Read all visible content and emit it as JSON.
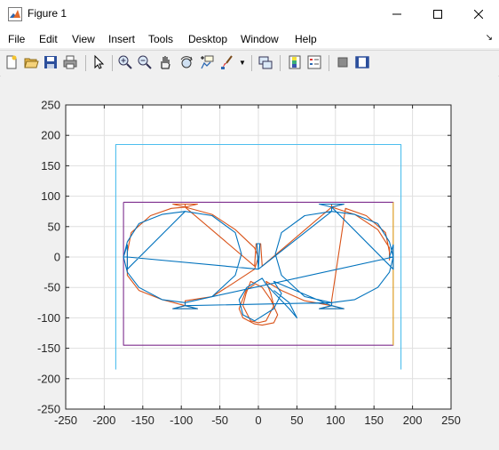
{
  "window": {
    "title": "Figure 1"
  },
  "menu": [
    "File",
    "Edit",
    "View",
    "Insert",
    "Tools",
    "Desktop",
    "Window",
    "Help"
  ],
  "toolbar": [
    "new-figure-icon",
    "open-file-icon",
    "save-icon",
    "print-icon",
    "pointer-icon",
    "zoom-in-icon",
    "zoom-out-icon",
    "pan-icon",
    "rotate-3d-icon",
    "data-cursor-icon",
    "brush-icon",
    "link-plot-icon",
    "colorbar-icon",
    "legend-icon",
    "hide-plot-tools-icon",
    "show-plot-tools-icon"
  ],
  "chart_data": {
    "type": "line",
    "title": "",
    "xlabel": "",
    "ylabel": "",
    "xlim": [
      -250,
      250
    ],
    "ylim": [
      -250,
      250
    ],
    "xticks": [
      -250,
      -200,
      -150,
      -100,
      -50,
      0,
      50,
      100,
      150,
      200,
      250
    ],
    "yticks": [
      -250,
      -200,
      -150,
      -100,
      -50,
      0,
      50,
      100,
      150,
      200,
      250
    ],
    "grid": true,
    "box": true,
    "series": [
      {
        "color": "#4DBEEE",
        "x": [
          -185,
          -185,
          185,
          185
        ],
        "y": [
          -185,
          185,
          185,
          -185
        ]
      },
      {
        "color": "#7E2F8E",
        "x": [
          -175,
          175,
          175,
          -175,
          -175
        ],
        "y": [
          90,
          90,
          -145,
          -145,
          90
        ]
      },
      {
        "color": "#EDB120",
        "x": [
          175,
          175
        ],
        "y": [
          90,
          -145
        ]
      },
      {
        "color": "#D95319",
        "x": [
          -95,
          -95,
          -111,
          -79,
          -95,
          -60,
          -30,
          -5,
          0,
          -5,
          -35,
          -60,
          -95,
          -95,
          -79,
          -111,
          -95,
          -125,
          -155,
          -170,
          -170,
          -170,
          -165,
          -140,
          -113,
          -95,
          -5,
          -3,
          3,
          5,
          95,
          95,
          79,
          111,
          95,
          125,
          155,
          170,
          170,
          170,
          165,
          140,
          113,
          95,
          95,
          111,
          79,
          95,
          60,
          30,
          10,
          16,
          20,
          10,
          0,
          -10,
          -20,
          -16,
          -10,
          5,
          16,
          25,
          20,
          5,
          -5,
          -20,
          -25,
          -16,
          -5
        ],
        "y": [
          87,
          82,
          87,
          87,
          82,
          70,
          45,
          15,
          0,
          -20,
          -45,
          -65,
          -72,
          -80,
          -85,
          -85,
          -80,
          -70,
          -55,
          -30,
          -5,
          8,
          40,
          68,
          80,
          82,
          -15,
          22,
          22,
          -15,
          82,
          87,
          87,
          87,
          82,
          70,
          45,
          15,
          -5,
          8,
          40,
          68,
          80,
          -72,
          -80,
          -85,
          -85,
          -80,
          -72,
          -55,
          -40,
          -60,
          -80,
          -105,
          -108,
          -105,
          -80,
          -60,
          -40,
          -50,
          -70,
          -95,
          -108,
          -112,
          -110,
          -100,
          -85,
          -55,
          -45
        ]
      },
      {
        "color": "#0072BD",
        "x": [
          -95,
          -60,
          -30,
          -22,
          -30,
          -60,
          -95,
          -125,
          -155,
          -170,
          -175,
          -170,
          -155,
          -125,
          -95,
          -170,
          -170,
          -175,
          -170,
          0,
          -2,
          2,
          0,
          95,
          60,
          30,
          22,
          30,
          60,
          95,
          125,
          155,
          170,
          175,
          170,
          155,
          125,
          95,
          95,
          79,
          111,
          95,
          175,
          175,
          170,
          175,
          -95,
          -95,
          -79,
          -111,
          -95,
          95,
          95,
          79,
          111,
          95,
          20,
          30,
          20,
          -5,
          -20,
          -25,
          -15,
          5,
          10,
          25,
          40,
          50,
          40,
          20
        ],
        "y": [
          75,
          68,
          40,
          5,
          -30,
          -65,
          -75,
          -70,
          -50,
          -25,
          0,
          25,
          55,
          70,
          75,
          -20,
          20,
          0,
          0,
          -20,
          22,
          22,
          -20,
          75,
          68,
          40,
          5,
          -30,
          -65,
          -75,
          -70,
          -50,
          -25,
          0,
          25,
          55,
          70,
          75,
          82,
          87,
          87,
          82,
          -20,
          20,
          0,
          0,
          -75,
          -80,
          -85,
          -85,
          -80,
          -75,
          -80,
          -85,
          -85,
          -80,
          -40,
          -60,
          -85,
          -105,
          -95,
          -70,
          -50,
          -35,
          -45,
          -65,
          -85,
          -100,
          -75,
          -55
        ]
      }
    ]
  }
}
